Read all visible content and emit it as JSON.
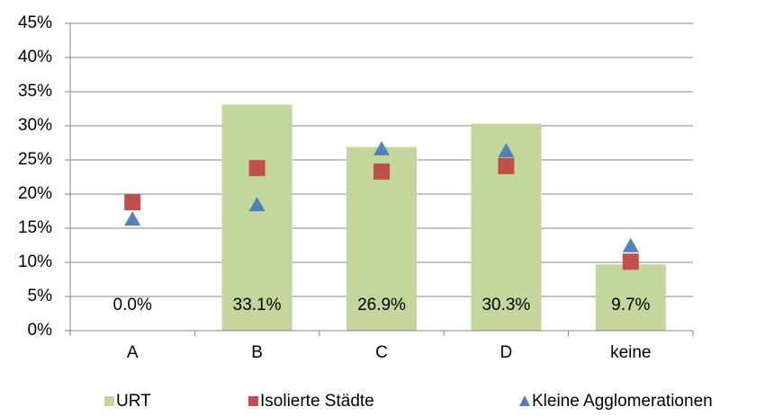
{
  "chart_data": {
    "type": "bar",
    "categories": [
      "A",
      "B",
      "C",
      "D",
      "keine"
    ],
    "series": [
      {
        "name": "URT",
        "marker": "bar",
        "color": "#c3d69b",
        "values": [
          0.0,
          33.1,
          26.9,
          30.3,
          9.7
        ],
        "value_labels": [
          "0.0%",
          "33.1%",
          "26.9%",
          "30.3%",
          "9.7%"
        ]
      },
      {
        "name": "Isolierte Städte",
        "marker": "square",
        "color": "#c0504d",
        "values": [
          18.8,
          23.8,
          23.3,
          24.1,
          10.1
        ]
      },
      {
        "name": "Kleine Agglomerationen",
        "marker": "triangle",
        "color": "#4f81bd",
        "values": [
          16.3,
          18.4,
          26.6,
          26.3,
          12.4
        ]
      }
    ],
    "ylim": [
      0,
      45
    ],
    "yticks": [
      {
        "value": 0,
        "label": "0%"
      },
      {
        "value": 5,
        "label": "5%"
      },
      {
        "value": 10,
        "label": "10%"
      },
      {
        "value": 15,
        "label": "15%"
      },
      {
        "value": 20,
        "label": "20%"
      },
      {
        "value": 25,
        "label": "25%"
      },
      {
        "value": 30,
        "label": "30%"
      },
      {
        "value": 35,
        "label": "35%"
      },
      {
        "value": 40,
        "label": "40%"
      },
      {
        "value": 45,
        "label": "45%"
      }
    ],
    "grid": true,
    "legend": "bottom"
  }
}
